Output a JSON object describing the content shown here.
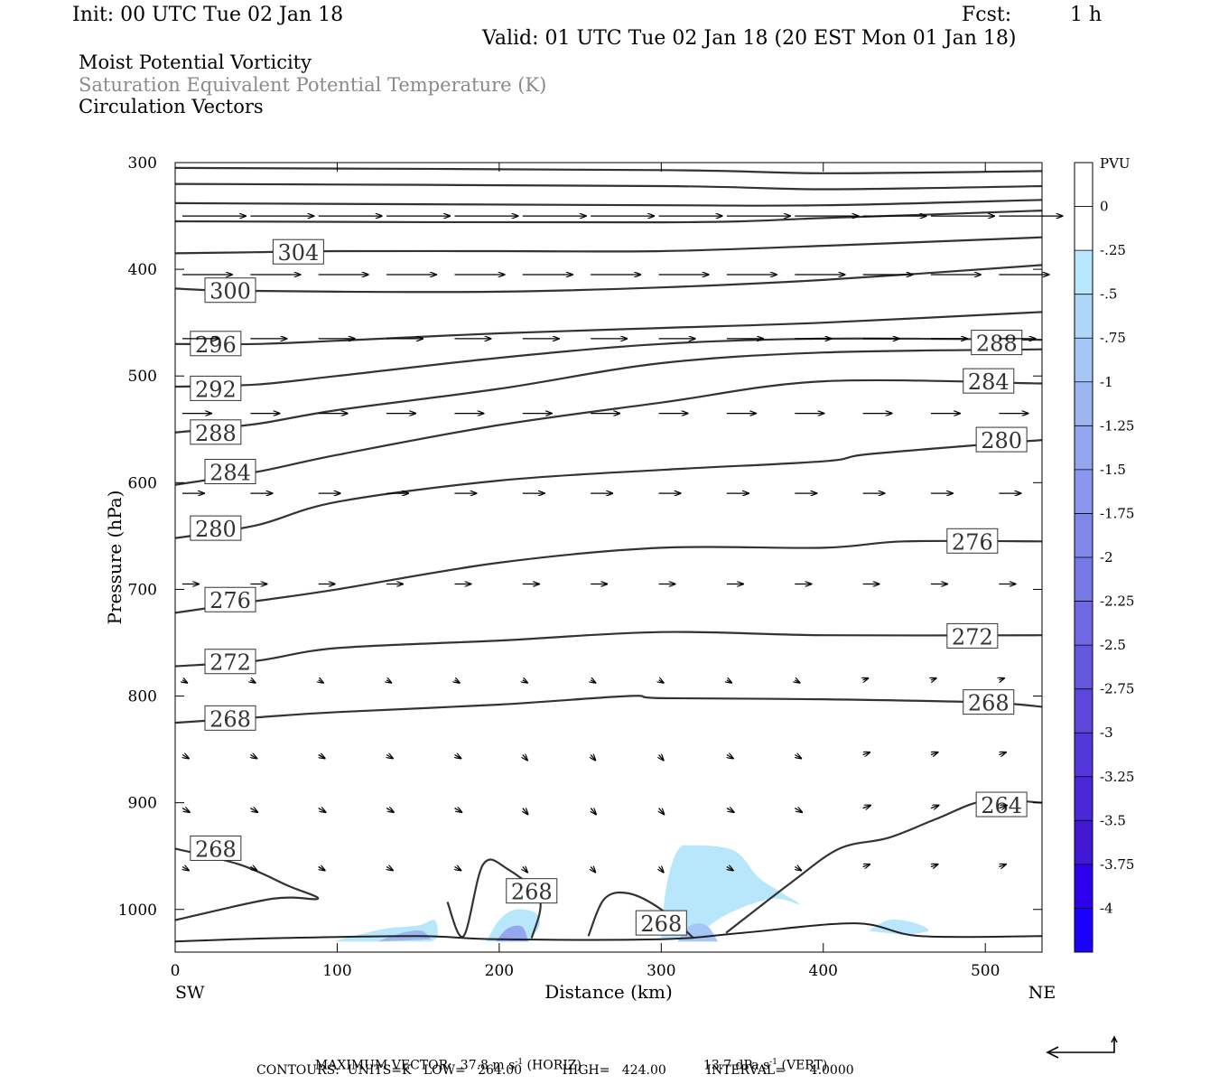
{
  "header": {
    "init": "Init: 00 UTC Tue 02 Jan 18",
    "fcst_label": "Fcst:",
    "fcst_value": "1 h",
    "valid": "Valid: 01 UTC Tue 02 Jan 18 (20 EST Mon 01 Jan 18)",
    "fields": [
      "Moist Potential Vorticity",
      "Saturation Equivalent Potential Temperature (K)",
      "Circulation Vectors"
    ]
  },
  "footer": {
    "max_vector": "MAXIMUM VECTOR:  37.8 m s",
    "max_vector_exp": "-1",
    "max_vector_horiz": " (HORIZ)",
    "vert_value": "13.7 dPa s",
    "vert_exp": "-1",
    "vert_label": " (VERT)",
    "contours": "CONTOURS:  UNITS=K   LOW=   264.00          HIGH=   424.00          INTERVAL=      4.0000"
  },
  "chart_data": {
    "type": "cross-section contour",
    "xlabel": "Distance (km)",
    "ylabel": "Pressure (hPa)",
    "xlim": [
      0,
      535
    ],
    "ylim": [
      1040,
      300
    ],
    "x_ticks": [
      0,
      100,
      200,
      300,
      400,
      500
    ],
    "y_ticks": [
      300,
      400,
      500,
      600,
      700,
      800,
      900,
      1000
    ],
    "x_end_labels": {
      "left": "SW",
      "right": "NE"
    },
    "colorbar": {
      "title": "PVU",
      "labels": [
        "0",
        "-.25",
        "-.5",
        "-.75",
        "-1",
        "-1.25",
        "-1.5",
        "-1.75",
        "-2",
        "-2.25",
        "-2.5",
        "-2.75",
        "-3",
        "-3.25",
        "-3.5",
        "-3.75",
        "-4"
      ],
      "colors": [
        "#ffffff",
        "#ffffff",
        "#b8e6fb",
        "#afd6f8",
        "#a6c6f5",
        "#9db6f2",
        "#94a6ef",
        "#8a97ec",
        "#8187e9",
        "#7877e6",
        "#6f67e3",
        "#6657e0",
        "#5d47dd",
        "#5337da",
        "#4a27d7",
        "#4117d4",
        "#2e00f0"
      ]
    },
    "theta_es_contours": [
      {
        "label": "304",
        "label_at": [
          76,
          384
        ],
        "points": [
          [
            0,
            385
          ],
          [
            50,
            384
          ],
          [
            100,
            383
          ],
          [
            200,
            383
          ],
          [
            300,
            383
          ],
          [
            400,
            378
          ],
          [
            535,
            370
          ]
        ]
      },
      {
        "label": "300",
        "label_at": [
          34,
          420
        ],
        "points": [
          [
            0,
            418
          ],
          [
            30,
            420
          ],
          [
            100,
            421
          ],
          [
            200,
            421
          ],
          [
            300,
            417
          ],
          [
            400,
            410
          ],
          [
            535,
            396
          ]
        ]
      },
      {
        "label": "296",
        "label_at": [
          25,
          470
        ],
        "points": [
          [
            0,
            470
          ],
          [
            50,
            470
          ],
          [
            100,
            467
          ],
          [
            200,
            460
          ],
          [
            300,
            455
          ],
          [
            400,
            450
          ],
          [
            535,
            440
          ]
        ]
      },
      {
        "label": "292",
        "label_at": [
          25,
          512
        ],
        "points": [
          [
            0,
            510
          ],
          [
            50,
            508
          ],
          [
            100,
            500
          ],
          [
            200,
            483
          ],
          [
            300,
            470
          ],
          [
            400,
            465
          ],
          [
            535,
            466
          ]
        ]
      },
      {
        "label": "288",
        "label_at": [
          25,
          553
        ],
        "points": [
          [
            0,
            553
          ],
          [
            50,
            545
          ],
          [
            100,
            532
          ],
          [
            200,
            512
          ],
          [
            300,
            488
          ],
          [
            400,
            478
          ],
          [
            535,
            475
          ]
        ]
      },
      {
        "label": "288",
        "label_at": [
          507,
          469
        ],
        "points": [
          [
            0,
            553
          ],
          [
            50,
            545
          ],
          [
            100,
            532
          ],
          [
            200,
            512
          ],
          [
            300,
            488
          ],
          [
            400,
            478
          ],
          [
            535,
            475
          ]
        ]
      },
      {
        "label": "284",
        "label_at": [
          34,
          590
        ],
        "points": [
          [
            0,
            602
          ],
          [
            50,
            590
          ],
          [
            100,
            574
          ],
          [
            200,
            546
          ],
          [
            300,
            525
          ],
          [
            400,
            505
          ],
          [
            535,
            507
          ]
        ]
      },
      {
        "label": "284",
        "label_at": [
          502,
          505
        ],
        "points": [
          [
            0,
            602
          ],
          [
            50,
            590
          ],
          [
            100,
            574
          ],
          [
            200,
            546
          ],
          [
            300,
            525
          ],
          [
            400,
            505
          ],
          [
            535,
            507
          ]
        ]
      },
      {
        "label": "280",
        "label_at": [
          25,
          643
        ],
        "points": [
          [
            0,
            652
          ],
          [
            50,
            640
          ],
          [
            100,
            618
          ],
          [
            200,
            598
          ],
          [
            300,
            588
          ],
          [
            400,
            580
          ],
          [
            430,
            573
          ],
          [
            535,
            560
          ]
        ]
      },
      {
        "label": "280",
        "label_at": [
          510,
          560
        ],
        "points": [
          [
            0,
            652
          ],
          [
            50,
            640
          ],
          [
            100,
            618
          ],
          [
            200,
            598
          ],
          [
            300,
            588
          ],
          [
            400,
            580
          ],
          [
            430,
            573
          ],
          [
            535,
            560
          ]
        ]
      },
      {
        "label": "276",
        "label_at": [
          34,
          710
        ],
        "points": [
          [
            0,
            722
          ],
          [
            50,
            711
          ],
          [
            100,
            700
          ],
          [
            200,
            675
          ],
          [
            300,
            661
          ],
          [
            400,
            661
          ],
          [
            450,
            655
          ],
          [
            535,
            655
          ]
        ]
      },
      {
        "label": "276",
        "label_at": [
          492,
          655
        ],
        "points": [
          [
            0,
            722
          ],
          [
            50,
            711
          ],
          [
            100,
            700
          ],
          [
            200,
            675
          ],
          [
            300,
            661
          ],
          [
            400,
            661
          ],
          [
            450,
            655
          ],
          [
            535,
            655
          ]
        ]
      },
      {
        "label": "272",
        "label_at": [
          34,
          768
        ],
        "points": [
          [
            0,
            772
          ],
          [
            50,
            767
          ],
          [
            100,
            755
          ],
          [
            200,
            748
          ],
          [
            300,
            740
          ],
          [
            400,
            743
          ],
          [
            535,
            743
          ]
        ]
      },
      {
        "label": "272",
        "label_at": [
          492,
          744
        ],
        "points": [
          [
            0,
            772
          ],
          [
            50,
            767
          ],
          [
            100,
            755
          ],
          [
            200,
            748
          ],
          [
            300,
            740
          ],
          [
            400,
            743
          ],
          [
            535,
            743
          ]
        ]
      },
      {
        "label": "268",
        "label_at": [
          34,
          821
        ],
        "points": [
          [
            0,
            825
          ],
          [
            50,
            820
          ],
          [
            100,
            815
          ],
          [
            200,
            808
          ],
          [
            280,
            800
          ],
          [
            300,
            802
          ],
          [
            400,
            803
          ],
          [
            500,
            806
          ],
          [
            535,
            810
          ]
        ]
      },
      {
        "label": "268",
        "label_at": [
          502,
          806
        ],
        "points": [
          [
            0,
            825
          ],
          [
            50,
            820
          ],
          [
            100,
            815
          ],
          [
            200,
            808
          ],
          [
            280,
            800
          ],
          [
            300,
            802
          ],
          [
            400,
            803
          ],
          [
            500,
            806
          ],
          [
            535,
            810
          ]
        ]
      },
      {
        "label": "268",
        "label_at": [
          25,
          943
        ],
        "points": [
          [
            0,
            943
          ],
          [
            40,
            958
          ],
          [
            70,
            978
          ],
          [
            88,
            990
          ],
          [
            60,
            990
          ],
          [
            0,
            1010
          ]
        ]
      },
      {
        "label": "268",
        "label_at": [
          220,
          983
        ],
        "points": [
          [
            168,
            993
          ],
          [
            178,
            1025
          ],
          [
            190,
            958
          ],
          [
            205,
            962
          ],
          [
            225,
            990
          ],
          [
            220,
            1027
          ]
        ]
      },
      {
        "label": "268",
        "label_at": [
          300,
          1013
        ],
        "points": [
          [
            255,
            1025
          ],
          [
            265,
            990
          ],
          [
            280,
            985
          ],
          [
            300,
            1000
          ],
          [
            320,
            1027
          ]
        ]
      },
      {
        "label": "264",
        "label_at": [
          510,
          902
        ],
        "points": [
          [
            340,
            1022
          ],
          [
            380,
            975
          ],
          [
            410,
            943
          ],
          [
            440,
            933
          ],
          [
            470,
            915
          ],
          [
            500,
            898
          ],
          [
            535,
            900
          ]
        ]
      }
    ],
    "negative_mpv_regions": [
      {
        "min_pvu": -0.25,
        "max_x": 385,
        "min_x": 300,
        "top_hPa": 942
      },
      {
        "min_pvu": -1.25,
        "x_range": [
          120,
          160
        ],
        "near_surface": true
      },
      {
        "min_pvu": -1.5,
        "x_range": [
          195,
          225
        ],
        "near_surface": true
      }
    ],
    "circulation_vectors_max": {
      "horiz": "37.8 m s-1",
      "vert": "13.7 dPa s-1"
    }
  }
}
